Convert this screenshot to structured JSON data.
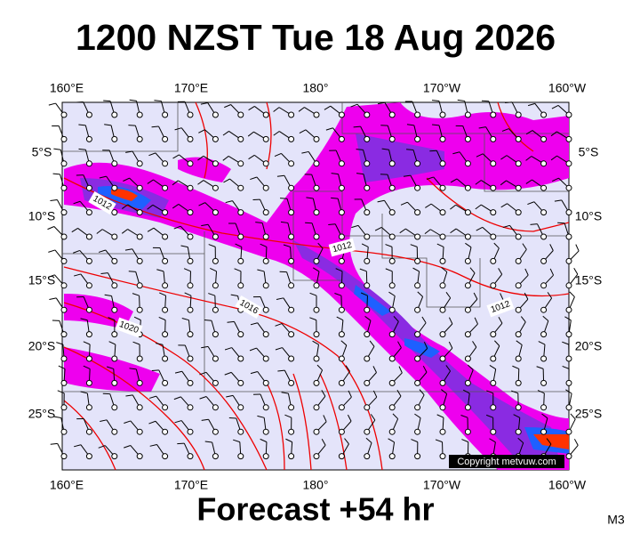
{
  "title": "1200 NZST Tue 18 Aug 2026",
  "longitude_labels": [
    "160°E",
    "170°E",
    "180°",
    "170°W",
    "160°W"
  ],
  "latitude_labels": [
    "5°S",
    "10°S",
    "15°S",
    "20°S",
    "25°S"
  ],
  "isobar_labels": [
    "1012",
    "1012",
    "1012",
    "1016",
    "1020"
  ],
  "copyright": "Copyright metvuw.com",
  "footer": "Forecast +54 hr",
  "model": "M3"
}
